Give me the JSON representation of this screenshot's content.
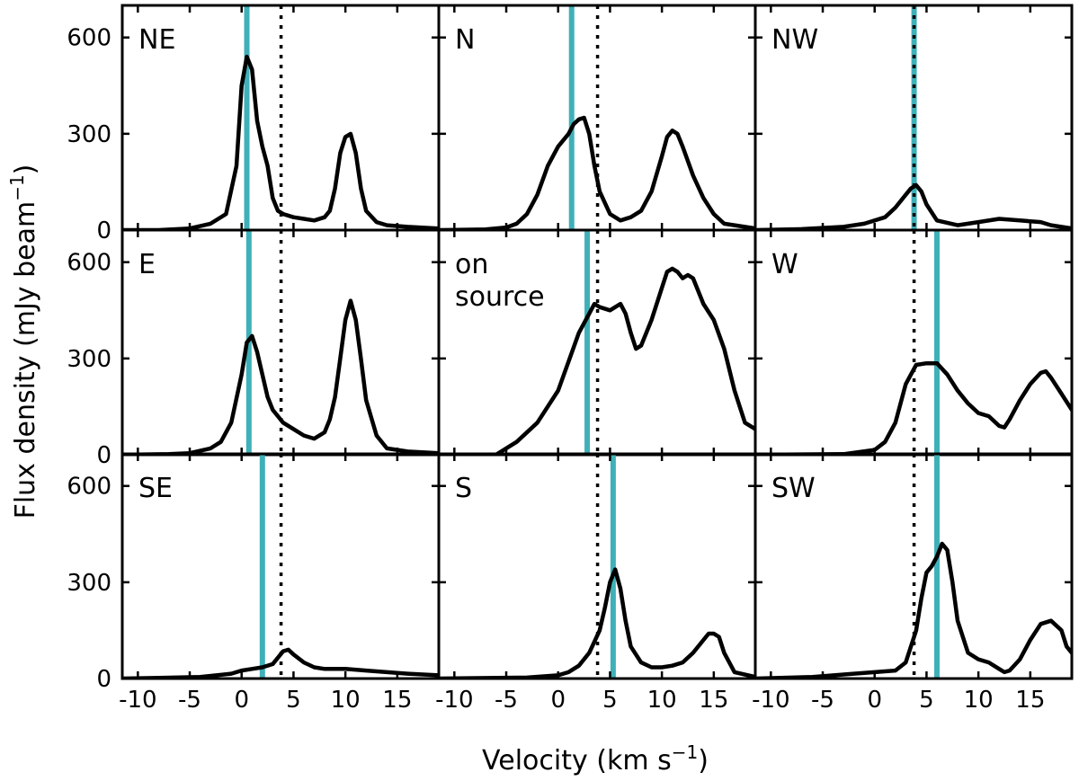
{
  "chart_data": {
    "type": "line",
    "grid": "3x3",
    "grid_lines": false,
    "xlabel": "Velocity (km s",
    "xlabel_sup": "−1",
    "xlabel_end": ")",
    "ylabel": "Flux density (mJy beam",
    "ylabel_sup": "−1",
    "ylabel_end": ")",
    "xlim": [
      -11.5,
      19
    ],
    "ylim": [
      0,
      700
    ],
    "xticks": [
      -10,
      -5,
      0,
      5,
      10,
      15
    ],
    "xtick_labels": [
      "-10",
      "-5",
      "0",
      "5",
      "10",
      "15"
    ],
    "yticks": [
      0,
      300,
      600
    ],
    "ytick_labels": [
      "0",
      "300",
      "600"
    ],
    "colors": {
      "line": "#000000",
      "cyan_marker": "#3fb0b8",
      "dotted_marker": "#000000"
    },
    "dotted_velocity": 3.8,
    "panels": [
      {
        "label": "NE",
        "cyan_velocity": 0.5,
        "x": [
          -11.5,
          -8,
          -5,
          -3,
          -1.5,
          -0.5,
          0,
          0.5,
          1,
          1.5,
          2,
          2.5,
          3,
          3.5,
          4,
          5,
          6,
          7,
          8,
          8.5,
          9,
          9.5,
          10,
          10.5,
          11,
          11.5,
          12,
          13,
          14,
          16,
          19
        ],
        "y": [
          0,
          0,
          5,
          20,
          50,
          200,
          450,
          540,
          500,
          340,
          260,
          200,
          100,
          60,
          50,
          40,
          35,
          30,
          40,
          60,
          130,
          240,
          290,
          300,
          240,
          130,
          60,
          25,
          15,
          10,
          5
        ]
      },
      {
        "label": "N",
        "cyan_velocity": 1.3,
        "x": [
          -11.5,
          -7,
          -5,
          -4,
          -3,
          -2,
          -1,
          0,
          1,
          1.5,
          2,
          2.5,
          3,
          3.5,
          4,
          5,
          6,
          7,
          8,
          9,
          10,
          10.5,
          11,
          11.5,
          12,
          13,
          14,
          15,
          16,
          19
        ],
        "y": [
          0,
          2,
          8,
          20,
          50,
          110,
          200,
          260,
          300,
          330,
          345,
          350,
          300,
          200,
          120,
          50,
          30,
          40,
          60,
          120,
          230,
          290,
          310,
          300,
          260,
          170,
          100,
          50,
          20,
          5
        ]
      },
      {
        "label": "NW",
        "cyan_velocity": 3.8,
        "x": [
          -11.5,
          -7,
          -3,
          -1,
          1,
          2,
          3,
          3.5,
          4,
          4.5,
          5,
          6,
          8,
          10,
          12,
          14,
          16,
          17,
          19
        ],
        "y": [
          0,
          3,
          10,
          20,
          40,
          70,
          110,
          130,
          140,
          120,
          80,
          30,
          15,
          25,
          35,
          30,
          25,
          15,
          5
        ]
      },
      {
        "label": "E",
        "cyan_velocity": 0.7,
        "x": [
          -11.5,
          -7,
          -5,
          -3,
          -2,
          -1,
          0,
          0.5,
          1,
          1.5,
          2,
          2.5,
          3,
          4,
          5,
          6,
          7,
          8,
          8.5,
          9,
          9.5,
          10,
          10.5,
          11,
          11.5,
          12,
          13,
          14,
          16,
          19
        ],
        "y": [
          0,
          2,
          5,
          20,
          40,
          100,
          250,
          350,
          370,
          320,
          250,
          180,
          140,
          100,
          80,
          60,
          50,
          70,
          110,
          180,
          300,
          420,
          480,
          420,
          300,
          170,
          60,
          20,
          10,
          5
        ]
      },
      {
        "label": "on source",
        "cyan_velocity": 2.8,
        "x": [
          -11.5,
          -6,
          -4,
          -2,
          0,
          1,
          2,
          3,
          3.5,
          4,
          5,
          6,
          6.5,
          7,
          7.5,
          8,
          9,
          10,
          10.5,
          11,
          11.5,
          12,
          12.5,
          13,
          14,
          15,
          16,
          17,
          18,
          19
        ],
        "y": [
          0,
          0,
          40,
          100,
          200,
          290,
          380,
          440,
          470,
          460,
          450,
          470,
          440,
          380,
          330,
          340,
          420,
          520,
          570,
          580,
          570,
          550,
          560,
          550,
          470,
          420,
          330,
          200,
          100,
          80
        ]
      },
      {
        "label": "W",
        "cyan_velocity": 6.0,
        "x": [
          -11.5,
          -3,
          0,
          1,
          2,
          3,
          4,
          5,
          6,
          7,
          8,
          9,
          10,
          11,
          12,
          12.5,
          13,
          14,
          15,
          16,
          16.5,
          17,
          18,
          19
        ],
        "y": [
          0,
          2,
          15,
          40,
          100,
          220,
          280,
          285,
          285,
          250,
          200,
          160,
          130,
          120,
          90,
          85,
          110,
          170,
          220,
          255,
          260,
          240,
          190,
          140
        ]
      },
      {
        "label": "SE",
        "cyan_velocity": 2.0,
        "x": [
          -11.5,
          -8,
          -4,
          -1,
          0,
          1,
          2,
          3,
          4,
          4.5,
          5,
          6,
          7,
          8,
          10,
          12,
          14,
          16,
          19
        ],
        "y": [
          0,
          2,
          5,
          15,
          25,
          30,
          35,
          45,
          85,
          90,
          75,
          50,
          35,
          30,
          30,
          25,
          20,
          15,
          10
        ]
      },
      {
        "label": "S",
        "cyan_velocity": 5.3,
        "x": [
          -11.5,
          -3,
          0,
          1,
          2,
          3,
          4,
          4.5,
          5,
          5.5,
          6,
          6.5,
          7,
          8,
          9,
          10,
          11,
          12,
          13,
          14,
          14.5,
          15,
          15.5,
          16,
          17,
          19
        ],
        "y": [
          0,
          3,
          10,
          20,
          40,
          80,
          150,
          220,
          300,
          340,
          280,
          180,
          100,
          50,
          35,
          35,
          40,
          50,
          80,
          120,
          140,
          140,
          130,
          80,
          20,
          5
        ]
      },
      {
        "label": "SW",
        "cyan_velocity": 6.0,
        "x": [
          -11.5,
          -6,
          -2,
          0,
          2,
          3,
          4,
          4.5,
          5,
          5.5,
          6,
          6.5,
          7,
          7.5,
          8,
          9,
          10,
          11,
          12,
          12.5,
          13,
          14,
          15,
          16,
          17,
          18,
          18.5,
          19
        ],
        "y": [
          0,
          5,
          15,
          20,
          25,
          50,
          150,
          250,
          330,
          350,
          380,
          420,
          400,
          300,
          180,
          80,
          60,
          50,
          30,
          20,
          25,
          60,
          120,
          170,
          180,
          150,
          100,
          80
        ]
      }
    ]
  }
}
